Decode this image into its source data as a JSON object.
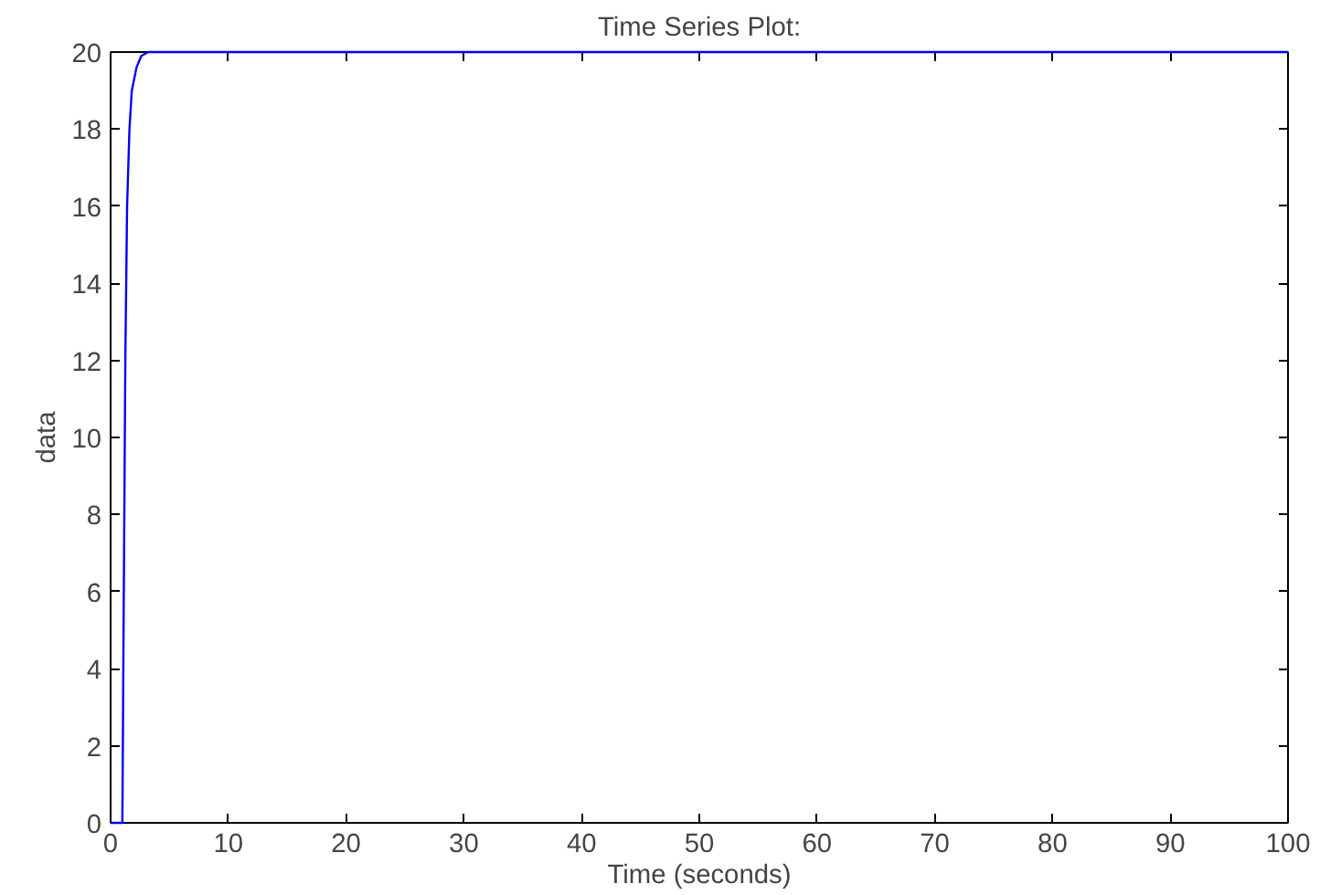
{
  "chart_data": {
    "type": "line",
    "title": "Time Series Plot:",
    "xlabel": "Time (seconds)",
    "ylabel": "data",
    "x": [
      0,
      1,
      1.1,
      1.25,
      1.4,
      1.6,
      1.8,
      2.2,
      2.6,
      3.2,
      100
    ],
    "series": [
      {
        "color": "#0000ff",
        "values": [
          0,
          0,
          5,
          12,
          16,
          18,
          19,
          19.6,
          19.9,
          20,
          20
        ]
      }
    ],
    "xlim": [
      0,
      100
    ],
    "xticks": [
      0,
      10,
      20,
      30,
      40,
      50,
      60,
      70,
      80,
      90,
      100
    ],
    "ylim": [
      0,
      20
    ],
    "yticks": [
      0,
      2,
      4,
      6,
      8,
      10,
      12,
      14,
      16,
      18,
      20
    ],
    "grid": false,
    "line_style": "solid"
  }
}
